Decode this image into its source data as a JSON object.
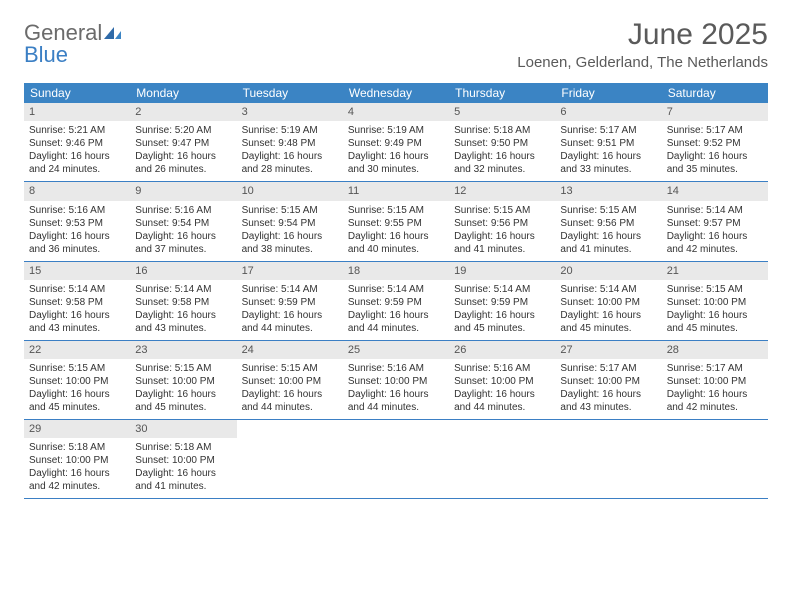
{
  "logo": {
    "part1": "General",
    "part2": "Blue"
  },
  "title": "June 2025",
  "location": "Loenen, Gelderland, The Netherlands",
  "colors": {
    "header_bg": "#3b84c4",
    "header_text": "#ffffff",
    "daynum_bg": "#e9e9e9",
    "row_border": "#3b7fc4",
    "body_bg": "#ffffff",
    "text": "#333333",
    "title_color": "#5a5a5a"
  },
  "day_headers": [
    "Sunday",
    "Monday",
    "Tuesday",
    "Wednesday",
    "Thursday",
    "Friday",
    "Saturday"
  ],
  "weeks": [
    [
      {
        "n": "1",
        "sr": "5:21 AM",
        "ss": "9:46 PM",
        "dl": "16 hours and 24 minutes."
      },
      {
        "n": "2",
        "sr": "5:20 AM",
        "ss": "9:47 PM",
        "dl": "16 hours and 26 minutes."
      },
      {
        "n": "3",
        "sr": "5:19 AM",
        "ss": "9:48 PM",
        "dl": "16 hours and 28 minutes."
      },
      {
        "n": "4",
        "sr": "5:19 AM",
        "ss": "9:49 PM",
        "dl": "16 hours and 30 minutes."
      },
      {
        "n": "5",
        "sr": "5:18 AM",
        "ss": "9:50 PM",
        "dl": "16 hours and 32 minutes."
      },
      {
        "n": "6",
        "sr": "5:17 AM",
        "ss": "9:51 PM",
        "dl": "16 hours and 33 minutes."
      },
      {
        "n": "7",
        "sr": "5:17 AM",
        "ss": "9:52 PM",
        "dl": "16 hours and 35 minutes."
      }
    ],
    [
      {
        "n": "8",
        "sr": "5:16 AM",
        "ss": "9:53 PM",
        "dl": "16 hours and 36 minutes."
      },
      {
        "n": "9",
        "sr": "5:16 AM",
        "ss": "9:54 PM",
        "dl": "16 hours and 37 minutes."
      },
      {
        "n": "10",
        "sr": "5:15 AM",
        "ss": "9:54 PM",
        "dl": "16 hours and 38 minutes."
      },
      {
        "n": "11",
        "sr": "5:15 AM",
        "ss": "9:55 PM",
        "dl": "16 hours and 40 minutes."
      },
      {
        "n": "12",
        "sr": "5:15 AM",
        "ss": "9:56 PM",
        "dl": "16 hours and 41 minutes."
      },
      {
        "n": "13",
        "sr": "5:15 AM",
        "ss": "9:56 PM",
        "dl": "16 hours and 41 minutes."
      },
      {
        "n": "14",
        "sr": "5:14 AM",
        "ss": "9:57 PM",
        "dl": "16 hours and 42 minutes."
      }
    ],
    [
      {
        "n": "15",
        "sr": "5:14 AM",
        "ss": "9:58 PM",
        "dl": "16 hours and 43 minutes."
      },
      {
        "n": "16",
        "sr": "5:14 AM",
        "ss": "9:58 PM",
        "dl": "16 hours and 43 minutes."
      },
      {
        "n": "17",
        "sr": "5:14 AM",
        "ss": "9:59 PM",
        "dl": "16 hours and 44 minutes."
      },
      {
        "n": "18",
        "sr": "5:14 AM",
        "ss": "9:59 PM",
        "dl": "16 hours and 44 minutes."
      },
      {
        "n": "19",
        "sr": "5:14 AM",
        "ss": "9:59 PM",
        "dl": "16 hours and 45 minutes."
      },
      {
        "n": "20",
        "sr": "5:14 AM",
        "ss": "10:00 PM",
        "dl": "16 hours and 45 minutes."
      },
      {
        "n": "21",
        "sr": "5:15 AM",
        "ss": "10:00 PM",
        "dl": "16 hours and 45 minutes."
      }
    ],
    [
      {
        "n": "22",
        "sr": "5:15 AM",
        "ss": "10:00 PM",
        "dl": "16 hours and 45 minutes."
      },
      {
        "n": "23",
        "sr": "5:15 AM",
        "ss": "10:00 PM",
        "dl": "16 hours and 45 minutes."
      },
      {
        "n": "24",
        "sr": "5:15 AM",
        "ss": "10:00 PM",
        "dl": "16 hours and 44 minutes."
      },
      {
        "n": "25",
        "sr": "5:16 AM",
        "ss": "10:00 PM",
        "dl": "16 hours and 44 minutes."
      },
      {
        "n": "26",
        "sr": "5:16 AM",
        "ss": "10:00 PM",
        "dl": "16 hours and 44 minutes."
      },
      {
        "n": "27",
        "sr": "5:17 AM",
        "ss": "10:00 PM",
        "dl": "16 hours and 43 minutes."
      },
      {
        "n": "28",
        "sr": "5:17 AM",
        "ss": "10:00 PM",
        "dl": "16 hours and 42 minutes."
      }
    ],
    [
      {
        "n": "29",
        "sr": "5:18 AM",
        "ss": "10:00 PM",
        "dl": "16 hours and 42 minutes."
      },
      {
        "n": "30",
        "sr": "5:18 AM",
        "ss": "10:00 PM",
        "dl": "16 hours and 41 minutes."
      },
      null,
      null,
      null,
      null,
      null
    ]
  ],
  "labels": {
    "sunrise": "Sunrise: ",
    "sunset": "Sunset: ",
    "daylight": "Daylight: "
  }
}
